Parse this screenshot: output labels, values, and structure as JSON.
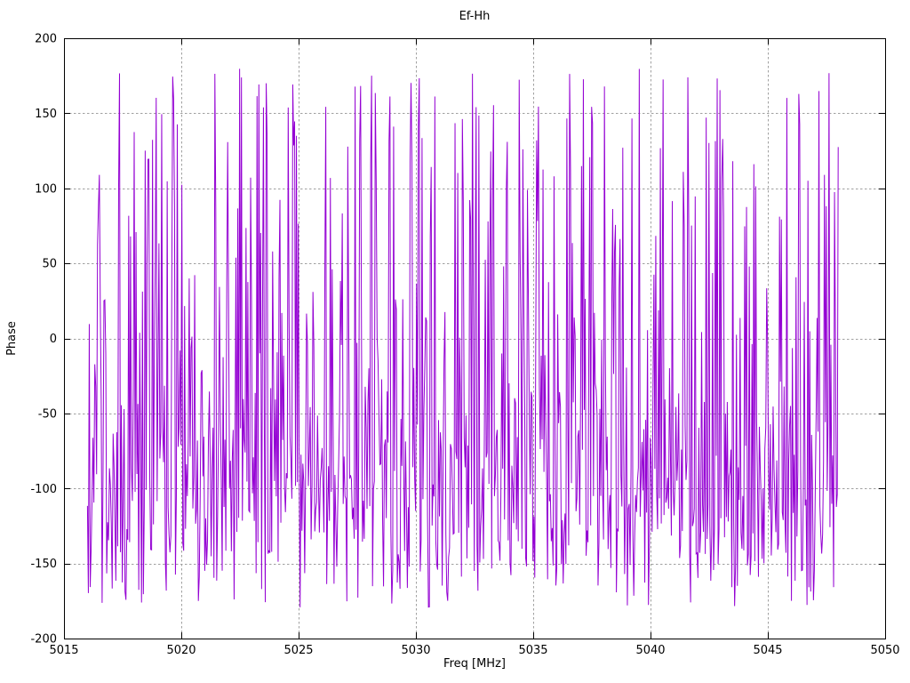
{
  "page": {
    "background": "#ffffff",
    "description": "gnuplot-style phase vs frequency plot"
  },
  "chart_data": {
    "type": "line",
    "title": "Ef-Hh",
    "xlabel": "Freq [MHz]",
    "ylabel": "Phase",
    "xlim": [
      5015,
      5050
    ],
    "ylim": [
      -200,
      200
    ],
    "x_ticks": [
      5015,
      5020,
      5025,
      5030,
      5035,
      5040,
      5045,
      5050
    ],
    "y_ticks": [
      -200,
      -150,
      -100,
      -50,
      0,
      50,
      100,
      150,
      200
    ],
    "grid": true,
    "grid_color": "#a0a0a0",
    "grid_dash": "2.5,2.5",
    "frame_color": "#000000",
    "tick_length": 7,
    "legend": "none",
    "series": [
      {
        "name": "Ef-Hh phase",
        "color": "#9400d3",
        "line_width": 1,
        "x_start": 5016.0,
        "x_end": 5048.0,
        "n_points": 820,
        "y_min": -180,
        "y_max": 180,
        "wrap_degrees": 360,
        "character": "wrapped interferometric phase noise: dense cluster between -180 and -60 deg with frequent full-range spikes reaching +180 deg",
        "synthesis": {
          "seed": 1337,
          "uniform_fraction": 0.45,
          "gauss_mean": -115,
          "gauss_sigma": 42
        }
      }
    ]
  }
}
